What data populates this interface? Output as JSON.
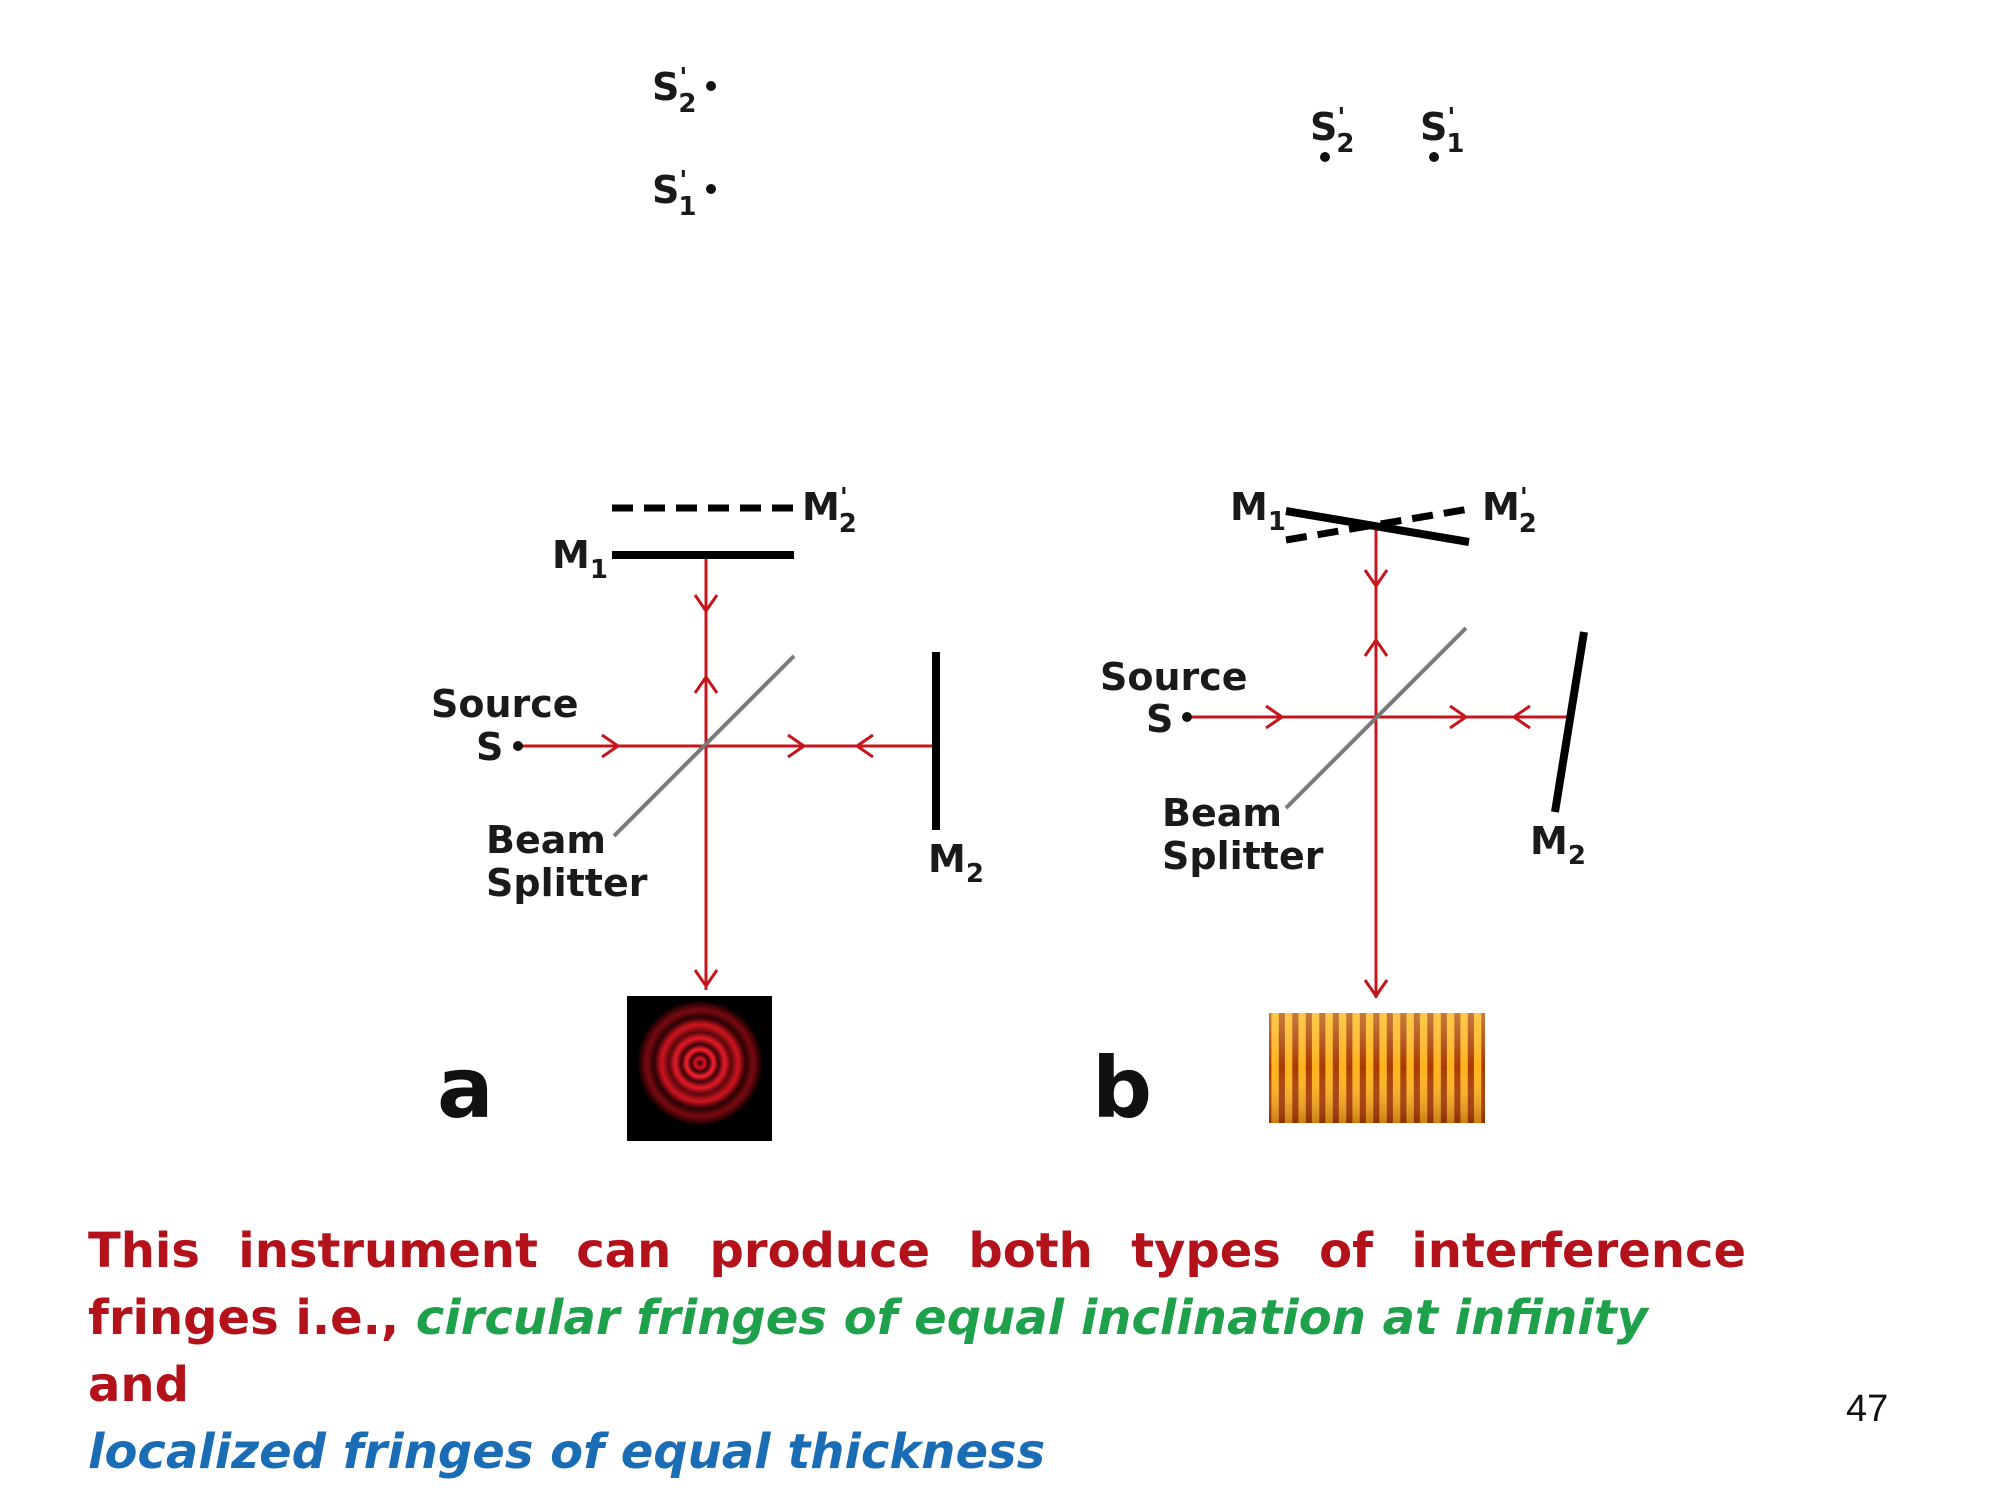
{
  "virtual_sources": {
    "a": {
      "s2": {
        "main": "S",
        "prime": "'",
        "sub": "2"
      },
      "s1": {
        "main": "S",
        "prime": "'",
        "sub": "1"
      }
    },
    "b": {
      "s2": {
        "main": "S",
        "prime": "'",
        "sub": "2"
      },
      "s1": {
        "main": "S",
        "prime": "'",
        "sub": "1"
      }
    }
  },
  "panel_a": {
    "letter": "a",
    "m2_image": {
      "main": "M",
      "prime": "'",
      "sub": "2"
    },
    "m1": {
      "main": "M",
      "sub": "1"
    },
    "source_label": "Source",
    "source_point": "S",
    "beam_label_1": "Beam",
    "beam_label_2": "Splitter",
    "m2": {
      "main": "M",
      "sub": "2"
    },
    "fringe_pattern": "circular"
  },
  "panel_b": {
    "letter": "b",
    "m1": {
      "main": "M",
      "sub": "1"
    },
    "m2_image": {
      "main": "M",
      "prime": "'",
      "sub": "2"
    },
    "source_label": "Source",
    "source_point": "S",
    "beam_label_1": "Beam",
    "beam_label_2": "Splitter",
    "m2": {
      "main": "M",
      "sub": "2"
    },
    "fringe_pattern": "straight"
  },
  "colors": {
    "beam": "#c4161c",
    "mirror": "#000000",
    "splitter": "#777777",
    "caption_red": "#b3121b",
    "caption_green": "#1fa04a",
    "caption_blue": "#1a6db5"
  },
  "caption": {
    "line1": "This instrument can produce both types of interference",
    "part_red": "fringes i.e., ",
    "part_green": "circular fringes of equal inclination at infinity",
    "part_and": " and",
    "part_blue": "localized fringes of equal thickness"
  },
  "page_number": "47"
}
